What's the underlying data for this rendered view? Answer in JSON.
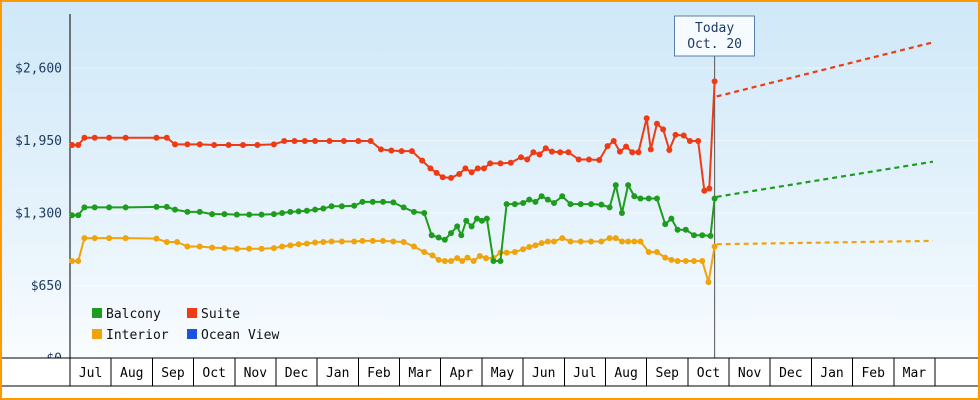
{
  "colors": {
    "border": "#ff9900",
    "bg_top": "#cfe8f8",
    "bg_mid": "#e6f3fc",
    "bg_bottom": "#ffffff",
    "axis": "#000000",
    "today_line": "#555555",
    "today_box_border": "#5b7fa6",
    "today_box_fill": "#f6fbff",
    "month_row_fill": "#ffffff"
  },
  "chart_data": {
    "type": "line",
    "title": "",
    "y_axis": {
      "min": 0,
      "max": 2600,
      "ticks": [
        {
          "label": "$0",
          "value": 0
        },
        {
          "label": "$650",
          "value": 650
        },
        {
          "label": "$1,300",
          "value": 1300
        },
        {
          "label": "$1,950",
          "value": 1950
        },
        {
          "label": "$2,600",
          "value": 2600
        }
      ]
    },
    "x_axis": {
      "labels": [
        "Jul",
        "Aug",
        "Sep",
        "Oct",
        "Nov",
        "Dec",
        "Jan",
        "Feb",
        "Mar",
        "Apr",
        "May",
        "Jun",
        "Jul",
        "Aug",
        "Sep",
        "Oct",
        "Nov",
        "Dec",
        "Jan",
        "Feb",
        "Mar"
      ]
    },
    "today": {
      "label": "Today",
      "date_label": "Oct. 20",
      "month_position": 15.65
    },
    "legend": {
      "items": [
        {
          "label": "Balcony",
          "color": "#1e9c1e"
        },
        {
          "label": "Suite",
          "color": "#ee3b14"
        },
        {
          "label": "Interior",
          "color": "#f0a30a"
        },
        {
          "label": "Ocean View",
          "color": "#1a53e0"
        }
      ]
    },
    "series": [
      {
        "name": "Interior",
        "color": "#f0a30a",
        "points": [
          [
            0.05,
            870
          ],
          [
            0.2,
            870
          ],
          [
            0.35,
            1075
          ],
          [
            0.6,
            1075
          ],
          [
            0.95,
            1075
          ],
          [
            1.35,
            1075
          ],
          [
            2.1,
            1070
          ],
          [
            2.35,
            1040
          ],
          [
            2.6,
            1040
          ],
          [
            2.85,
            1000
          ],
          [
            3.15,
            1000
          ],
          [
            3.45,
            990
          ],
          [
            3.75,
            985
          ],
          [
            4.05,
            980
          ],
          [
            4.35,
            980
          ],
          [
            4.65,
            980
          ],
          [
            4.95,
            985
          ],
          [
            5.15,
            1000
          ],
          [
            5.35,
            1010
          ],
          [
            5.55,
            1020
          ],
          [
            5.75,
            1025
          ],
          [
            5.95,
            1035
          ],
          [
            6.15,
            1040
          ],
          [
            6.35,
            1045
          ],
          [
            6.6,
            1045
          ],
          [
            6.9,
            1045
          ],
          [
            7.1,
            1050
          ],
          [
            7.35,
            1050
          ],
          [
            7.6,
            1050
          ],
          [
            7.85,
            1045
          ],
          [
            8.1,
            1040
          ],
          [
            8.35,
            1000
          ],
          [
            8.6,
            950
          ],
          [
            8.8,
            920
          ],
          [
            8.95,
            880
          ],
          [
            9.1,
            870
          ],
          [
            9.25,
            870
          ],
          [
            9.4,
            895
          ],
          [
            9.52,
            870
          ],
          [
            9.65,
            900
          ],
          [
            9.8,
            870
          ],
          [
            9.95,
            915
          ],
          [
            10.1,
            895
          ],
          [
            10.28,
            895
          ],
          [
            10.45,
            945
          ],
          [
            10.6,
            945
          ],
          [
            10.8,
            950
          ],
          [
            11.0,
            975
          ],
          [
            11.15,
            995
          ],
          [
            11.3,
            1010
          ],
          [
            11.45,
            1030
          ],
          [
            11.6,
            1045
          ],
          [
            11.75,
            1045
          ],
          [
            11.95,
            1075
          ],
          [
            12.15,
            1045
          ],
          [
            12.4,
            1045
          ],
          [
            12.65,
            1045
          ],
          [
            12.9,
            1045
          ],
          [
            13.1,
            1075
          ],
          [
            13.25,
            1075
          ],
          [
            13.4,
            1045
          ],
          [
            13.55,
            1045
          ],
          [
            13.7,
            1045
          ],
          [
            13.85,
            1045
          ],
          [
            14.05,
            950
          ],
          [
            14.25,
            950
          ],
          [
            14.45,
            900
          ],
          [
            14.6,
            880
          ],
          [
            14.75,
            870
          ],
          [
            14.95,
            870
          ],
          [
            15.15,
            870
          ],
          [
            15.35,
            870
          ],
          [
            15.5,
            680
          ],
          [
            15.65,
            1000
          ]
        ],
        "projection": [
          [
            15.7,
            1020
          ],
          [
            20.95,
            1050
          ]
        ]
      },
      {
        "name": "Balcony",
        "color": "#1e9c1e",
        "points": [
          [
            0.05,
            1280
          ],
          [
            0.2,
            1280
          ],
          [
            0.35,
            1350
          ],
          [
            0.6,
            1350
          ],
          [
            0.95,
            1350
          ],
          [
            1.35,
            1350
          ],
          [
            2.1,
            1355
          ],
          [
            2.35,
            1355
          ],
          [
            2.55,
            1330
          ],
          [
            2.85,
            1310
          ],
          [
            3.15,
            1310
          ],
          [
            3.45,
            1290
          ],
          [
            3.75,
            1290
          ],
          [
            4.05,
            1285
          ],
          [
            4.35,
            1285
          ],
          [
            4.65,
            1285
          ],
          [
            4.95,
            1290
          ],
          [
            5.15,
            1300
          ],
          [
            5.35,
            1310
          ],
          [
            5.55,
            1315
          ],
          [
            5.75,
            1320
          ],
          [
            5.95,
            1330
          ],
          [
            6.15,
            1340
          ],
          [
            6.35,
            1360
          ],
          [
            6.6,
            1360
          ],
          [
            6.9,
            1365
          ],
          [
            7.1,
            1400
          ],
          [
            7.35,
            1400
          ],
          [
            7.6,
            1400
          ],
          [
            7.85,
            1395
          ],
          [
            8.1,
            1350
          ],
          [
            8.35,
            1310
          ],
          [
            8.6,
            1300
          ],
          [
            8.78,
            1100
          ],
          [
            8.95,
            1080
          ],
          [
            9.1,
            1060
          ],
          [
            9.25,
            1120
          ],
          [
            9.4,
            1180
          ],
          [
            9.5,
            1100
          ],
          [
            9.62,
            1230
          ],
          [
            9.75,
            1180
          ],
          [
            9.88,
            1250
          ],
          [
            10.0,
            1230
          ],
          [
            10.12,
            1250
          ],
          [
            10.28,
            870
          ],
          [
            10.45,
            870
          ],
          [
            10.6,
            1380
          ],
          [
            10.8,
            1380
          ],
          [
            11.0,
            1390
          ],
          [
            11.15,
            1420
          ],
          [
            11.3,
            1400
          ],
          [
            11.45,
            1450
          ],
          [
            11.6,
            1420
          ],
          [
            11.75,
            1390
          ],
          [
            11.95,
            1450
          ],
          [
            12.15,
            1380
          ],
          [
            12.4,
            1380
          ],
          [
            12.65,
            1380
          ],
          [
            12.9,
            1375
          ],
          [
            13.1,
            1350
          ],
          [
            13.25,
            1550
          ],
          [
            13.4,
            1300
          ],
          [
            13.55,
            1550
          ],
          [
            13.7,
            1450
          ],
          [
            13.85,
            1430
          ],
          [
            14.05,
            1430
          ],
          [
            14.25,
            1430
          ],
          [
            14.45,
            1200
          ],
          [
            14.6,
            1250
          ],
          [
            14.75,
            1150
          ],
          [
            14.95,
            1150
          ],
          [
            15.15,
            1100
          ],
          [
            15.35,
            1100
          ],
          [
            15.55,
            1095
          ],
          [
            15.65,
            1430
          ]
        ],
        "projection": [
          [
            15.7,
            1445
          ],
          [
            20.95,
            1760
          ]
        ]
      },
      {
        "name": "Suite",
        "color": "#ee3b14",
        "points": [
          [
            0.05,
            1910
          ],
          [
            0.2,
            1910
          ],
          [
            0.35,
            1975
          ],
          [
            0.6,
            1975
          ],
          [
            0.95,
            1975
          ],
          [
            1.35,
            1975
          ],
          [
            2.1,
            1975
          ],
          [
            2.35,
            1975
          ],
          [
            2.55,
            1915
          ],
          [
            2.85,
            1915
          ],
          [
            3.15,
            1915
          ],
          [
            3.5,
            1910
          ],
          [
            3.85,
            1910
          ],
          [
            4.2,
            1910
          ],
          [
            4.55,
            1910
          ],
          [
            4.95,
            1915
          ],
          [
            5.2,
            1945
          ],
          [
            5.45,
            1945
          ],
          [
            5.7,
            1945
          ],
          [
            5.95,
            1945
          ],
          [
            6.3,
            1945
          ],
          [
            6.65,
            1945
          ],
          [
            7.0,
            1945
          ],
          [
            7.3,
            1945
          ],
          [
            7.55,
            1870
          ],
          [
            7.8,
            1860
          ],
          [
            8.05,
            1855
          ],
          [
            8.3,
            1855
          ],
          [
            8.55,
            1770
          ],
          [
            8.75,
            1700
          ],
          [
            8.9,
            1660
          ],
          [
            9.05,
            1620
          ],
          [
            9.25,
            1615
          ],
          [
            9.45,
            1650
          ],
          [
            9.6,
            1700
          ],
          [
            9.75,
            1665
          ],
          [
            9.9,
            1700
          ],
          [
            10.05,
            1700
          ],
          [
            10.2,
            1745
          ],
          [
            10.45,
            1745
          ],
          [
            10.7,
            1750
          ],
          [
            10.95,
            1800
          ],
          [
            11.1,
            1780
          ],
          [
            11.25,
            1845
          ],
          [
            11.4,
            1825
          ],
          [
            11.55,
            1880
          ],
          [
            11.7,
            1850
          ],
          [
            11.9,
            1845
          ],
          [
            12.1,
            1845
          ],
          [
            12.35,
            1780
          ],
          [
            12.6,
            1780
          ],
          [
            12.85,
            1775
          ],
          [
            13.05,
            1900
          ],
          [
            13.2,
            1945
          ],
          [
            13.35,
            1850
          ],
          [
            13.5,
            1895
          ],
          [
            13.65,
            1845
          ],
          [
            13.8,
            1845
          ],
          [
            14.0,
            2150
          ],
          [
            14.1,
            1870
          ],
          [
            14.25,
            2100
          ],
          [
            14.4,
            2050
          ],
          [
            14.55,
            1865
          ],
          [
            14.7,
            2000
          ],
          [
            14.9,
            1995
          ],
          [
            15.05,
            1945
          ],
          [
            15.25,
            1945
          ],
          [
            15.4,
            1500
          ],
          [
            15.52,
            1520
          ],
          [
            15.65,
            2480
          ]
        ],
        "projection": [
          [
            15.7,
            2345
          ],
          [
            20.95,
            2830
          ]
        ]
      },
      {
        "name": "Ocean View",
        "color": "#1a53e0",
        "points": [],
        "projection": []
      }
    ]
  }
}
